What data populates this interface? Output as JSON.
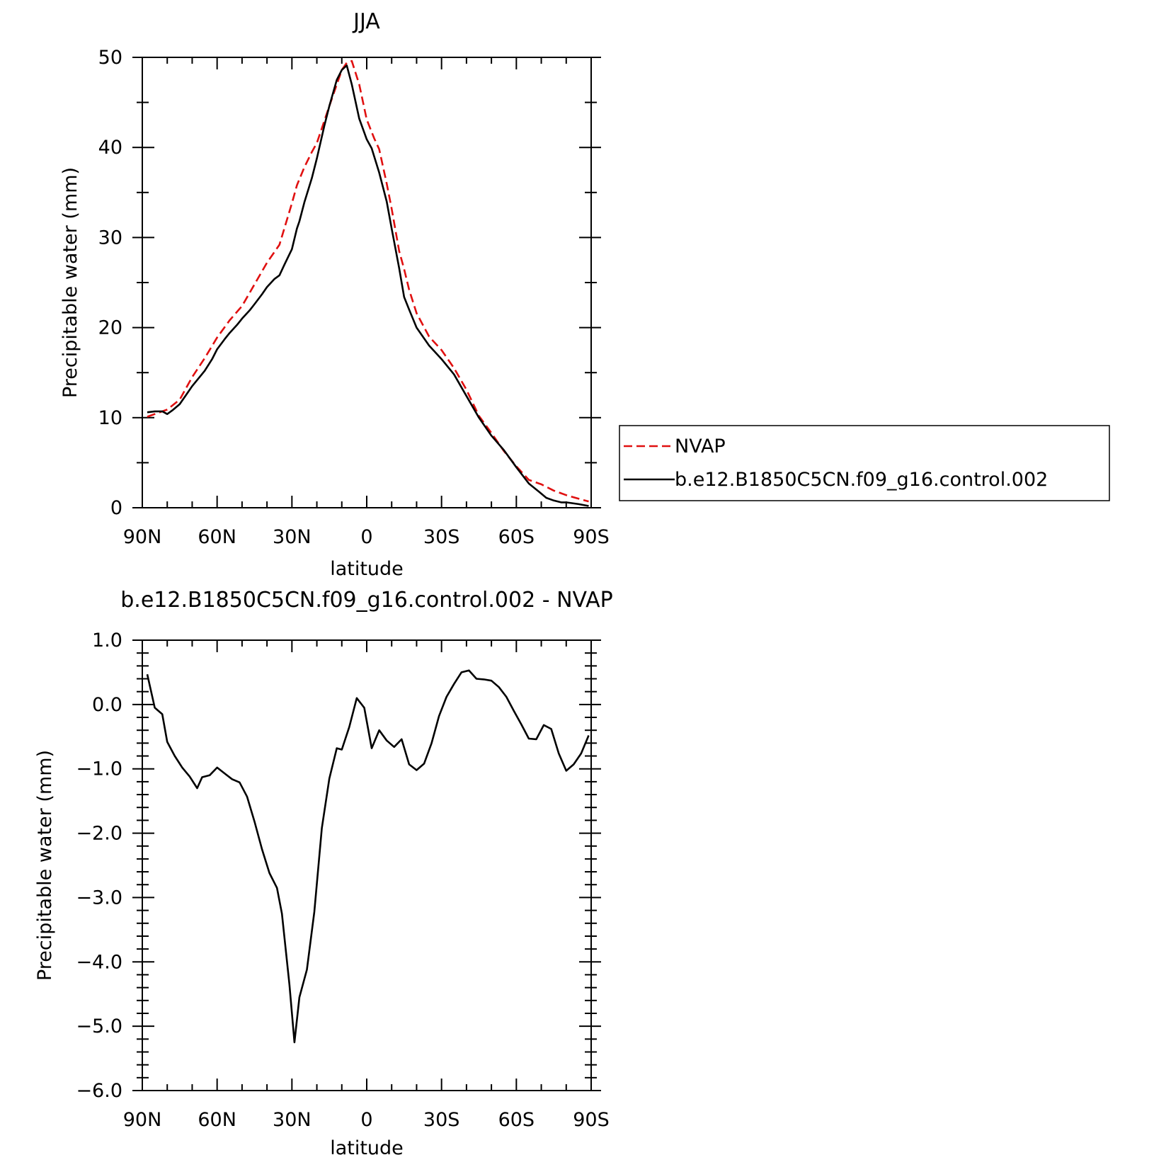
{
  "chart_data": [
    {
      "type": "line",
      "title": "JJA",
      "xlabel": "latitude",
      "ylabel": "Precipitable water (mm)",
      "xlim": [
        -90,
        90
      ],
      "ylim": [
        0,
        50
      ],
      "x_ticks": [
        {
          "value": -90,
          "label": "90N"
        },
        {
          "value": -60,
          "label": "60N"
        },
        {
          "value": -30,
          "label": "30N"
        },
        {
          "value": 0,
          "label": "0"
        },
        {
          "value": 30,
          "label": "30S"
        },
        {
          "value": 60,
          "label": "60S"
        },
        {
          "value": 90,
          "label": "90S"
        }
      ],
      "y_ticks": [
        {
          "value": 0,
          "label": "0"
        },
        {
          "value": 10,
          "label": "10"
        },
        {
          "value": 20,
          "label": "20"
        },
        {
          "value": 30,
          "label": "30"
        },
        {
          "value": 40,
          "label": "40"
        },
        {
          "value": 50,
          "label": "50"
        }
      ],
      "legend_position": "right",
      "series": [
        {
          "name": "NVAP",
          "color": "#e01010",
          "style": "dashed",
          "x": [
            -88,
            -80,
            -75,
            -70,
            -65,
            -60,
            -55,
            -50,
            -45,
            -40,
            -35,
            -30,
            -28,
            -25,
            -22,
            -20,
            -15,
            -10,
            -9,
            -8,
            -6,
            -3,
            0,
            3,
            5,
            8,
            10,
            13,
            15,
            17,
            20,
            25,
            30,
            35,
            40,
            45,
            50,
            55,
            60,
            65,
            70,
            75,
            80,
            85,
            89
          ],
          "y": [
            10.1,
            10.9,
            12.0,
            14.5,
            16.6,
            18.9,
            20.8,
            22.4,
            24.8,
            27.2,
            29.2,
            33.8,
            35.8,
            37.8,
            39.5,
            40.5,
            44.6,
            48.6,
            49.0,
            49.4,
            49.6,
            47.0,
            43.1,
            41.0,
            39.8,
            36.0,
            33.2,
            28.5,
            26.5,
            24.2,
            21.6,
            19.0,
            17.5,
            15.5,
            13.1,
            10.2,
            8.3,
            6.3,
            4.6,
            3.1,
            2.6,
            1.9,
            1.4,
            1.0,
            0.7
          ]
        },
        {
          "name": "b.e12.B1850C5CN.f09_g16.control.002",
          "color": "#000000",
          "style": "solid",
          "x": [
            -88,
            -85,
            -82,
            -80,
            -78,
            -75,
            -72,
            -70,
            -65,
            -62,
            -60,
            -57,
            -55,
            -52,
            -50,
            -47,
            -45,
            -42,
            -40,
            -37,
            -35,
            -33,
            -30,
            -28,
            -27,
            -25,
            -22,
            -20,
            -17,
            -15,
            -12,
            -10,
            -8,
            -6,
            -3,
            0,
            2,
            5,
            8,
            10,
            13,
            15,
            17,
            20,
            25,
            30,
            35,
            40,
            45,
            50,
            55,
            60,
            65,
            69,
            72,
            75,
            78,
            80,
            85,
            89
          ],
          "y": [
            10.6,
            10.7,
            10.7,
            10.4,
            10.8,
            11.5,
            12.7,
            13.5,
            15.2,
            16.5,
            17.6,
            18.7,
            19.4,
            20.3,
            21.0,
            21.9,
            22.6,
            23.7,
            24.5,
            25.4,
            25.8,
            27.0,
            28.7,
            31.0,
            31.8,
            33.9,
            36.6,
            38.8,
            42.4,
            44.6,
            47.5,
            48.6,
            49.1,
            47.0,
            43.2,
            40.9,
            39.9,
            37.2,
            34.0,
            31.0,
            26.6,
            23.4,
            22.0,
            20.0,
            18.0,
            16.5,
            14.8,
            12.4,
            10.0,
            8.0,
            6.4,
            4.5,
            2.7,
            1.8,
            1.1,
            0.8,
            0.6,
            0.6,
            0.4,
            0.2
          ]
        }
      ]
    },
    {
      "type": "line",
      "title": "b.e12.B1850C5CN.f09_g16.control.002 - NVAP",
      "xlabel": "latitude",
      "ylabel": "Precipitable water (mm)",
      "xlim": [
        -90,
        90
      ],
      "ylim": [
        -6.0,
        1.0
      ],
      "x_ticks": [
        {
          "value": -90,
          "label": "90N"
        },
        {
          "value": -60,
          "label": "60N"
        },
        {
          "value": -30,
          "label": "30N"
        },
        {
          "value": 0,
          "label": "0"
        },
        {
          "value": 30,
          "label": "30S"
        },
        {
          "value": 60,
          "label": "60S"
        },
        {
          "value": 90,
          "label": "90S"
        }
      ],
      "y_ticks": [
        {
          "value": 1.0,
          "label": "1.0"
        },
        {
          "value": 0.0,
          "label": "0.0"
        },
        {
          "value": -1.0,
          "label": "-1.0"
        },
        {
          "value": -2.0,
          "label": "-2.0"
        },
        {
          "value": -3.0,
          "label": "-3.0"
        },
        {
          "value": -4.0,
          "label": "-4.0"
        },
        {
          "value": -5.0,
          "label": "-5.0"
        },
        {
          "value": -6.0,
          "label": "-6.0"
        }
      ],
      "series": [
        {
          "color": "#000000",
          "style": "solid",
          "x": [
            -88,
            -85,
            -82,
            -80,
            -77,
            -74,
            -71,
            -68,
            -66,
            -63,
            -60,
            -57,
            -54,
            -51,
            -48,
            -45,
            -42,
            -39,
            -36,
            -34,
            -31,
            -29,
            -27,
            -24,
            -21,
            -18,
            -15,
            -12,
            -10,
            -7,
            -4,
            -1,
            2,
            5,
            8,
            11,
            14,
            17,
            20,
            23,
            26,
            29,
            32,
            35,
            38,
            41,
            44,
            47,
            50,
            53,
            56,
            59,
            62,
            65,
            68,
            71,
            74,
            77,
            80,
            83,
            86,
            89
          ],
          "y": [
            0.47,
            -0.05,
            -0.15,
            -0.58,
            -0.8,
            -0.98,
            -1.12,
            -1.3,
            -1.13,
            -1.1,
            -0.98,
            -1.07,
            -1.16,
            -1.21,
            -1.43,
            -1.82,
            -2.25,
            -2.62,
            -2.85,
            -3.25,
            -4.35,
            -5.25,
            -4.55,
            -4.12,
            -3.22,
            -1.92,
            -1.15,
            -0.68,
            -0.7,
            -0.35,
            0.1,
            -0.05,
            -0.68,
            -0.4,
            -0.56,
            -0.66,
            -0.54,
            -0.93,
            -1.02,
            -0.92,
            -0.6,
            -0.18,
            0.12,
            0.32,
            0.5,
            0.53,
            0.4,
            0.39,
            0.37,
            0.27,
            0.12,
            -0.1,
            -0.31,
            -0.53,
            -0.54,
            -0.32,
            -0.38,
            -0.76,
            -1.03,
            -0.93,
            -0.76,
            -0.48
          ]
        }
      ]
    }
  ]
}
